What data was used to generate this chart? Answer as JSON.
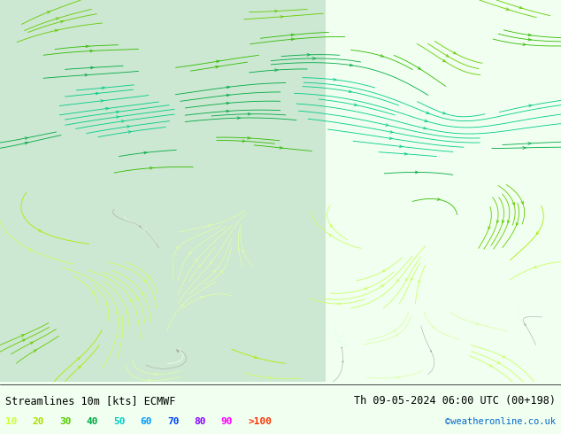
{
  "title_left": "Streamlines 10m [kts] ECMWF",
  "title_right": "Th 09-05-2024 06:00 UTC (00+198)",
  "credit": "©weatheronline.co.uk",
  "legend_values": [
    "10",
    "20",
    "30",
    "40",
    "50",
    "60",
    "70",
    "80",
    "90",
    ">100"
  ],
  "legend_colors": [
    "#ccff33",
    "#aadd00",
    "#33cc00",
    "#00aa44",
    "#00cccc",
    "#0099ff",
    "#0044ff",
    "#aa00ff",
    "#ff00aa",
    "#ff0000"
  ],
  "bg_color": "#f0fff0",
  "fig_width": 6.34,
  "fig_height": 4.9,
  "dpi": 100,
  "streamline_colors": {
    "calm": "#d4f0d4",
    "light": "#ccff66",
    "moderate": "#aadd00",
    "fresh": "#33cc00",
    "strong": "#00bb44",
    "gale": "#00cccc"
  },
  "bottom_bar_color": "#ffffff",
  "bottom_text_color": "#000000"
}
